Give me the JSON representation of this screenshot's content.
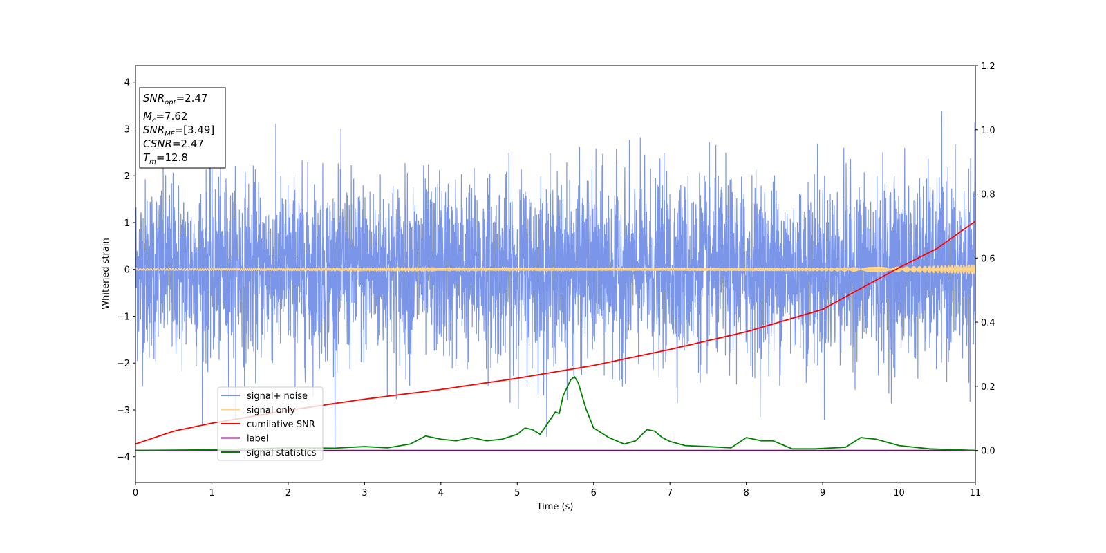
{
  "chart_data": {
    "type": "line",
    "xlabel": "Time (s)",
    "ylabel": "Whitened strain",
    "xlim": [
      0,
      11
    ],
    "ylim": [
      -4.55,
      4.35
    ],
    "y2lim": [
      -0.1,
      1.2
    ],
    "xticks": [
      0,
      1,
      2,
      3,
      4,
      5,
      6,
      7,
      8,
      9,
      10,
      11
    ],
    "yticks": [
      -4,
      -3,
      -2,
      -1,
      0,
      1,
      2,
      3,
      4
    ],
    "y2ticks": [
      "0.0",
      "0.2",
      "0.4",
      "0.6",
      "0.8",
      "1.0",
      "1.2"
    ],
    "y2tick_values": [
      0.0,
      0.2,
      0.4,
      0.6,
      0.8,
      1.0,
      1.2
    ],
    "legend_location": "lower-left",
    "info_box": {
      "snr_opt": "=2.47",
      "mc": "=7.62",
      "snr_mf": "=[3.49]",
      "csnr": "=2.47",
      "tm": "=12.8"
    },
    "series": [
      {
        "name": "signal+ noise",
        "color": "#7b96e8",
        "axis": "left",
        "noise_sigma": 0.95,
        "x_range": [
          0,
          11
        ],
        "y_range": [
          -4.15,
          3.95
        ]
      },
      {
        "name": "signal only",
        "color": "#fdd48a",
        "axis": "left",
        "x": [
          0,
          4,
          7,
          9,
          10,
          10.5,
          11
        ],
        "amplitude": [
          0.02,
          0.025,
          0.03,
          0.04,
          0.06,
          0.08,
          0.1
        ]
      },
      {
        "name": "cumilative SNR",
        "color": "#ff0000",
        "axis": "right",
        "x": [
          0,
          0.5,
          1,
          2,
          3,
          4,
          5,
          6,
          7,
          8,
          9,
          10,
          10.5,
          11
        ],
        "y": [
          0.02,
          0.06,
          0.085,
          0.125,
          0.16,
          0.19,
          0.225,
          0.265,
          0.315,
          0.37,
          0.44,
          0.57,
          0.63,
          0.715
        ]
      },
      {
        "name": "label",
        "color": "#800080",
        "axis": "right",
        "x": [
          0,
          11
        ],
        "y": [
          0.0,
          0.0
        ]
      },
      {
        "name": "signal statistics",
        "color": "#008000",
        "axis": "right",
        "x": [
          0,
          1,
          2,
          2.6,
          3.0,
          3.3,
          3.6,
          3.8,
          3.9,
          4.0,
          4.2,
          4.4,
          4.6,
          4.8,
          5.0,
          5.1,
          5.2,
          5.3,
          5.4,
          5.5,
          5.55,
          5.6,
          5.7,
          5.75,
          5.8,
          5.9,
          6.0,
          6.2,
          6.4,
          6.55,
          6.7,
          6.8,
          6.9,
          7.0,
          7.2,
          7.5,
          7.8,
          8.0,
          8.2,
          8.35,
          8.6,
          8.9,
          9.3,
          9.5,
          9.7,
          10.0,
          10.4,
          11
        ],
        "y": [
          0.0,
          0.002,
          0.008,
          0.007,
          0.012,
          0.008,
          0.02,
          0.045,
          0.04,
          0.035,
          0.03,
          0.04,
          0.03,
          0.035,
          0.05,
          0.07,
          0.065,
          0.05,
          0.085,
          0.12,
          0.115,
          0.17,
          0.22,
          0.23,
          0.21,
          0.13,
          0.07,
          0.04,
          0.02,
          0.03,
          0.065,
          0.06,
          0.04,
          0.028,
          0.015,
          0.012,
          0.008,
          0.04,
          0.03,
          0.03,
          0.005,
          0.005,
          0.01,
          0.04,
          0.035,
          0.015,
          0.005,
          0.0
        ]
      }
    ]
  }
}
